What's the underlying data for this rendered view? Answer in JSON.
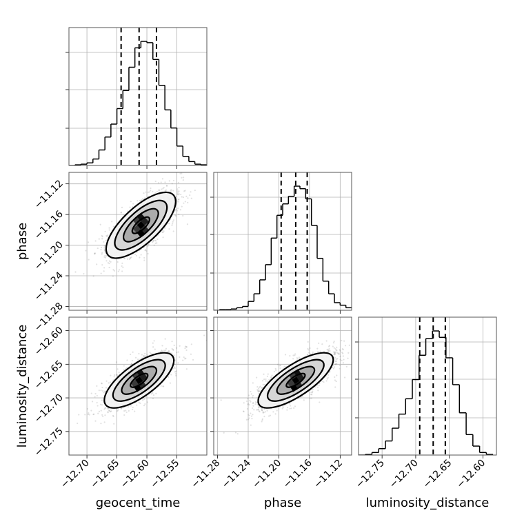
{
  "chart_data": {
    "type": "corner",
    "parameters": [
      "geocent_time",
      "phase",
      "luminosity_distance"
    ],
    "axis_labels": {
      "x": [
        "geocent_time",
        "phase",
        "luminosity_distance"
      ],
      "y": [
        "",
        "phase",
        "luminosity_distance"
      ]
    },
    "ranges": {
      "geocent_time": [
        -12.73,
        -12.5
      ],
      "phase": [
        -11.285,
        -11.105
      ],
      "luminosity_distance": [
        -12.785,
        -12.58
      ]
    },
    "ticks": {
      "geocent_time": {
        "values": [
          -12.7,
          -12.65,
          -12.6,
          -12.55
        ],
        "labels": [
          "−12.70",
          "−12.65",
          "−12.60",
          "−12.55"
        ]
      },
      "phase": {
        "values": [
          -11.28,
          -11.24,
          -11.2,
          -11.16,
          -11.12
        ],
        "labels": [
          "−11.28",
          "−11.24",
          "−11.20",
          "−11.16",
          "−11.12"
        ]
      },
      "luminosity_distance": {
        "values": [
          -12.75,
          -12.7,
          -12.65,
          -12.6
        ],
        "labels": [
          "−12.75",
          "−12.70",
          "−12.65",
          "−12.60"
        ]
      }
    },
    "y_ticks_panel": {
      "phase": {
        "values": [
          -11.28,
          -11.24,
          -11.2,
          -11.16,
          -11.12
        ],
        "labels": [
          "−11.28",
          "−11.24",
          "−11.20",
          "−11.16",
          "−11.12"
        ]
      },
      "luminosity_distance": {
        "values": [
          -12.75,
          -12.7,
          -12.65,
          -12.6
        ],
        "labels": [
          "−12.75",
          "−12.70",
          "−12.65",
          "−12.60"
        ]
      }
    },
    "histograms": {
      "geocent_time": {
        "edges": [
          -12.73,
          -12.72,
          -12.71,
          -12.7,
          -12.69,
          -12.68,
          -12.67,
          -12.66,
          -12.65,
          -12.64,
          -12.63,
          -12.62,
          -12.61,
          -12.6,
          -12.59,
          -12.58,
          -12.57,
          -12.56,
          -12.55,
          -12.54,
          -12.53,
          -12.52,
          -12.51,
          -12.5
        ],
        "counts": [
          0,
          0.005,
          0.01,
          0.02,
          0.05,
          0.12,
          0.22,
          0.32,
          0.44,
          0.58,
          0.76,
          0.91,
          0.96,
          0.95,
          0.82,
          0.62,
          0.43,
          0.29,
          0.15,
          0.07,
          0.03,
          0.01,
          0.005
        ]
      },
      "phase": {
        "edges": [
          -11.285,
          -11.2775,
          -11.27,
          -11.2625,
          -11.255,
          -11.2475,
          -11.24,
          -11.2325,
          -11.225,
          -11.2175,
          -11.21,
          -11.2025,
          -11.195,
          -11.1875,
          -11.18,
          -11.1725,
          -11.165,
          -11.1575,
          -11.15,
          -11.1425,
          -11.135,
          -11.1275,
          -11.12,
          -11.1125,
          -11.105
        ],
        "counts": [
          0,
          0.005,
          0.005,
          0.01,
          0.02,
          0.03,
          0.07,
          0.13,
          0.24,
          0.36,
          0.57,
          0.75,
          0.84,
          0.9,
          0.98,
          0.96,
          0.88,
          0.67,
          0.41,
          0.23,
          0.13,
          0.06,
          0.04,
          0.02
        ]
      },
      "luminosity_distance": {
        "edges": [
          -12.785,
          -12.775,
          -12.765,
          -12.755,
          -12.745,
          -12.735,
          -12.725,
          -12.715,
          -12.705,
          -12.695,
          -12.685,
          -12.675,
          -12.665,
          -12.655,
          -12.645,
          -12.635,
          -12.625,
          -12.615,
          -12.605,
          -12.595,
          -12.585
        ],
        "counts": [
          0,
          0.005,
          0.02,
          0.05,
          0.11,
          0.21,
          0.32,
          0.44,
          0.59,
          0.78,
          0.91,
          0.97,
          0.92,
          0.76,
          0.55,
          0.33,
          0.16,
          0.07,
          0.02,
          0.005
        ]
      }
    },
    "quantiles": {
      "geocent_time": [
        -12.643,
        -12.613,
        -12.584
      ],
      "phase": [
        -11.197,
        -11.178,
        -11.163
      ],
      "luminosity_distance": [
        -12.694,
        -12.674,
        -12.656
      ]
    },
    "pair_2d": [
      {
        "x": "geocent_time",
        "y": "phase",
        "mean": [
          -12.61,
          -11.174
        ],
        "sd": [
          0.029,
          0.0215
        ],
        "corr": 0.72,
        "contour_sigma": [
          0.5,
          1.0,
          1.5,
          2.0
        ]
      },
      {
        "x": "geocent_time",
        "y": "luminosity_distance",
        "mean": [
          -12.613,
          -12.674
        ],
        "sd": [
          0.029,
          0.0205
        ],
        "corr": 0.72,
        "contour_sigma": [
          0.5,
          1.0,
          1.5,
          2.0
        ]
      },
      {
        "x": "phase",
        "y": "luminosity_distance",
        "mean": [
          -11.178,
          -12.674
        ],
        "sd": [
          0.0245,
          0.0205
        ],
        "corr": 0.75,
        "contour_sigma": [
          0.5,
          1.0,
          1.5,
          2.0
        ]
      }
    ],
    "grid": true,
    "colors": {
      "lines": "#000000",
      "grid": "#b0b0b0",
      "points": "#777777"
    }
  }
}
